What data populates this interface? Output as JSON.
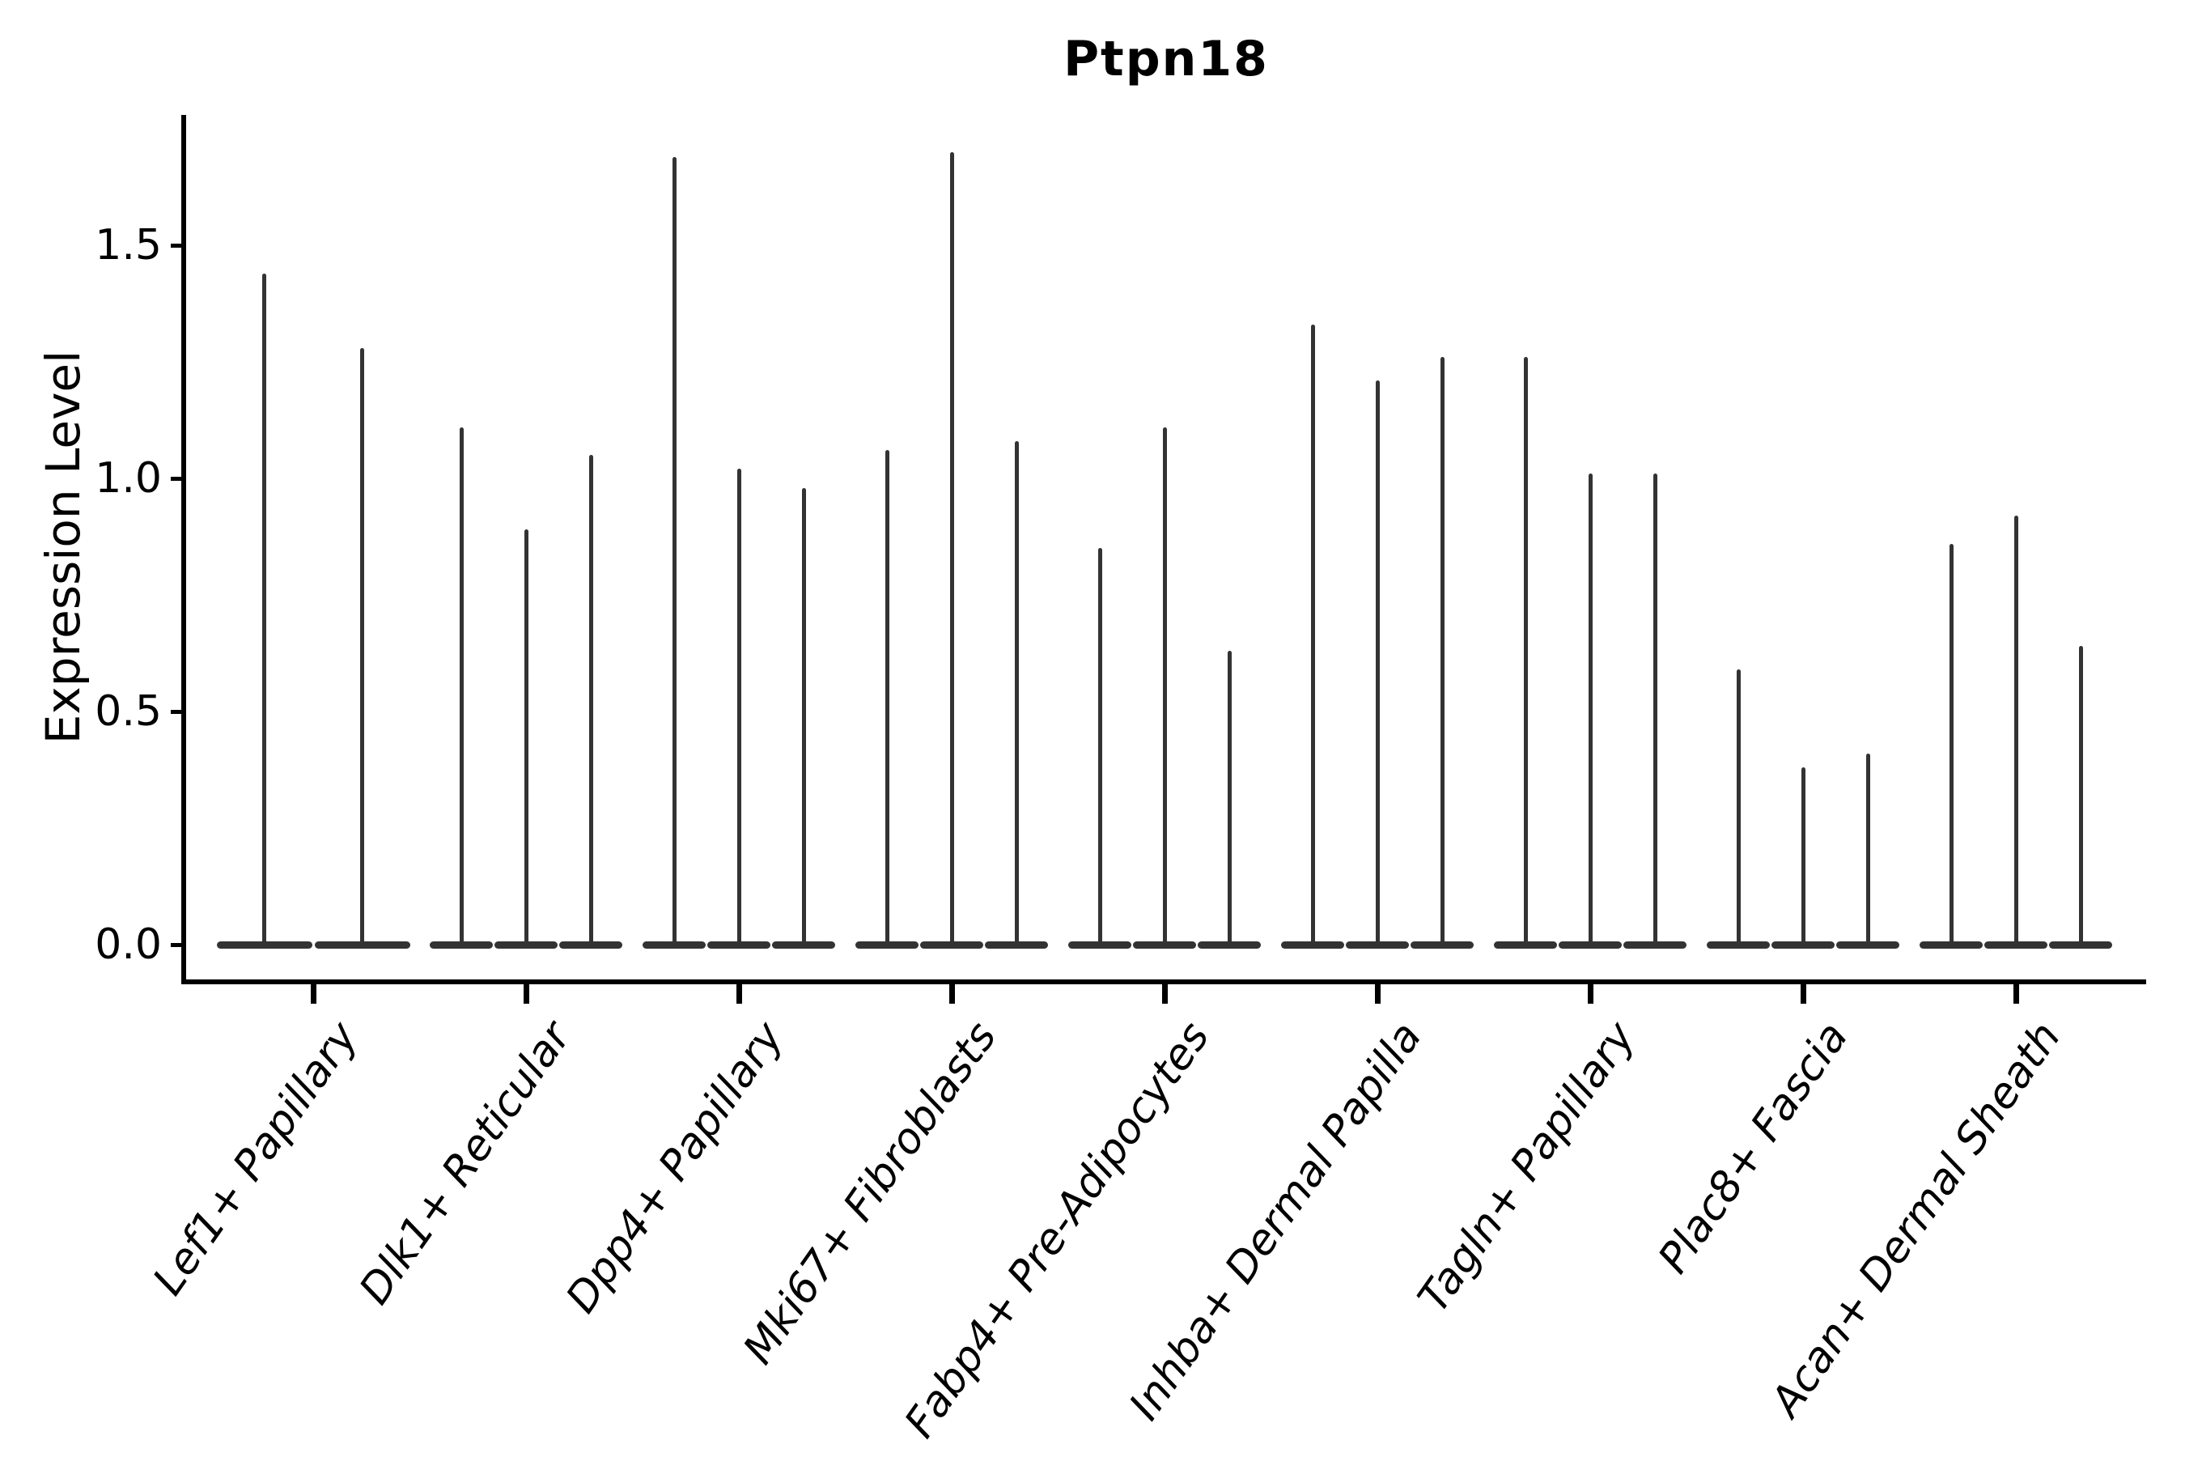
{
  "title": "Ptpn18",
  "chart_data": {
    "type": "violin",
    "title": "Ptpn18",
    "subtitle": "",
    "xlabel": "",
    "ylabel": "Expression Level",
    "ylim": [
      0,
      1.78
    ],
    "grid": false,
    "legend": "none",
    "yticks": [
      {
        "value": 0.0,
        "label": "0.0"
      },
      {
        "value": 0.5,
        "label": "0.5"
      },
      {
        "value": 1.0,
        "label": "1.0"
      },
      {
        "value": 1.5,
        "label": "1.5"
      }
    ],
    "categories": [
      "Lef1+ Papillary",
      "Dlk1+ Reticular",
      "Dpp4+ Papillary",
      "Mki67+ Fibroblasts",
      "Fabp4+ Pre-Adipocytes",
      "Inhba+ Dermal Papilla",
      "Tagln+ Papillary",
      "Plac8+ Fascia",
      "Acan+ Dermal Sheath"
    ],
    "series": [
      {
        "category": "Lef1+ Papillary",
        "violin_peaks": [
          1.44,
          1.28
        ]
      },
      {
        "category": "Dlk1+ Reticular",
        "violin_peaks": [
          1.11,
          0.89,
          1.05
        ]
      },
      {
        "category": "Dpp4+ Papillary",
        "violin_peaks": [
          1.69,
          1.02,
          0.98
        ]
      },
      {
        "category": "Mki67+ Fibroblasts",
        "violin_peaks": [
          1.06,
          1.7,
          1.08
        ]
      },
      {
        "category": "Fabp4+ Pre-Adipocytes",
        "violin_peaks": [
          0.85,
          1.11,
          0.63
        ]
      },
      {
        "category": "Inhba+ Dermal Papilla",
        "violin_peaks": [
          1.33,
          1.21,
          1.26
        ]
      },
      {
        "category": "Tagln+ Papillary",
        "violin_peaks": [
          1.26,
          1.01,
          1.01
        ]
      },
      {
        "category": "Plac8+ Fascia",
        "violin_peaks": [
          0.59,
          0.38,
          0.41
        ]
      },
      {
        "category": "Acan+ Dermal Sheath",
        "violin_peaks": [
          0.86,
          0.92,
          0.64
        ]
      }
    ],
    "colors": {
      "violin": "#333333",
      "axis": "#000000",
      "text": "#000000",
      "background": "#ffffff"
    }
  }
}
